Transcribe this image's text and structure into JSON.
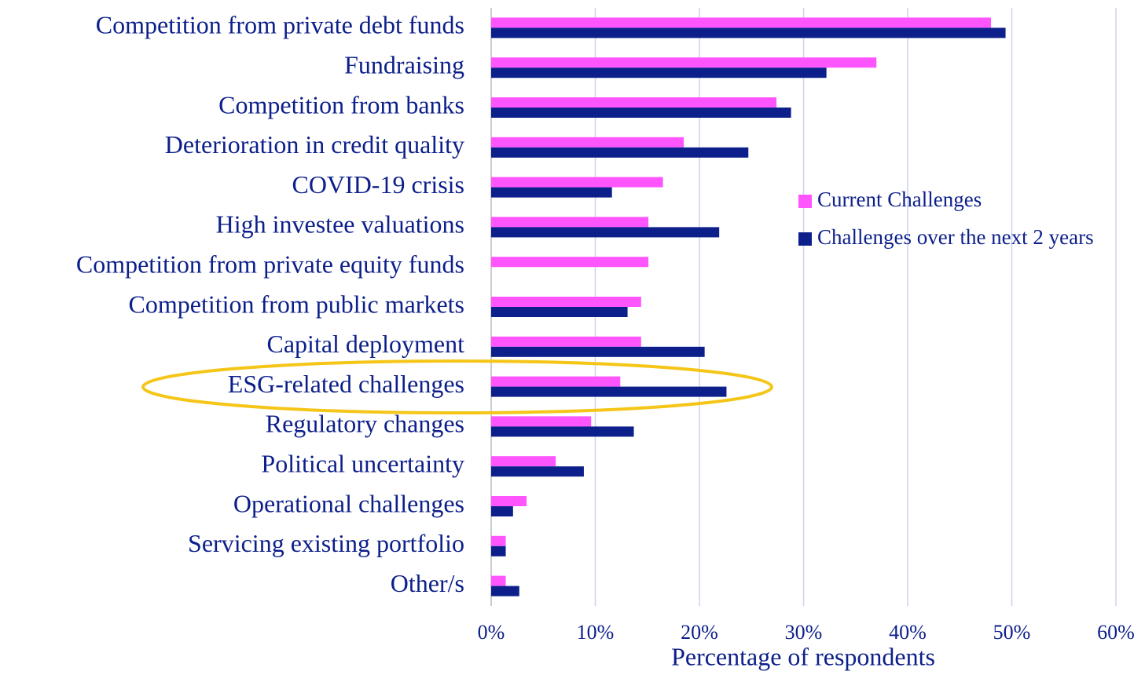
{
  "chart_data": {
    "type": "bar",
    "orientation": "horizontal",
    "xlabel": "Percentage of respondents",
    "categories": [
      "Competition from private debt funds",
      "Fundraising",
      "Competition from banks",
      "Deterioration in credit quality",
      "COVID-19 crisis",
      "High investee valuations",
      "Competition from private equity funds",
      "Competition from public markets",
      "Capital deployment",
      "ESG-related challenges",
      "Regulatory changes",
      "Political uncertainty",
      "Operational challenges",
      "Servicing existing portfolio",
      "Other/s"
    ],
    "series": [
      {
        "name": "Current Challenges",
        "color": "#ff55ff",
        "values": [
          48,
          37,
          27.4,
          18.5,
          16.5,
          15.1,
          15.1,
          14.4,
          14.4,
          12.4,
          9.6,
          6.2,
          3.4,
          1.4,
          1.4
        ]
      },
      {
        "name": "Challenges over the next 2 years",
        "color": "#0c1f8a",
        "values": [
          49.4,
          32.2,
          28.8,
          24.7,
          11.6,
          21.9,
          0,
          13.1,
          20.5,
          22.6,
          13.7,
          8.9,
          2.1,
          1.4,
          2.7
        ]
      }
    ],
    "xlim": [
      0,
      60
    ],
    "xticks": [
      {
        "value": 0,
        "label": "0%"
      },
      {
        "value": 10,
        "label": "10%"
      },
      {
        "value": 20,
        "label": "20%"
      },
      {
        "value": 30,
        "label": "30%"
      },
      {
        "value": 40,
        "label": "40%"
      },
      {
        "value": 50,
        "label": "50%"
      },
      {
        "value": 60,
        "label": "60%"
      }
    ],
    "grid": true,
    "legend": "right"
  }
}
